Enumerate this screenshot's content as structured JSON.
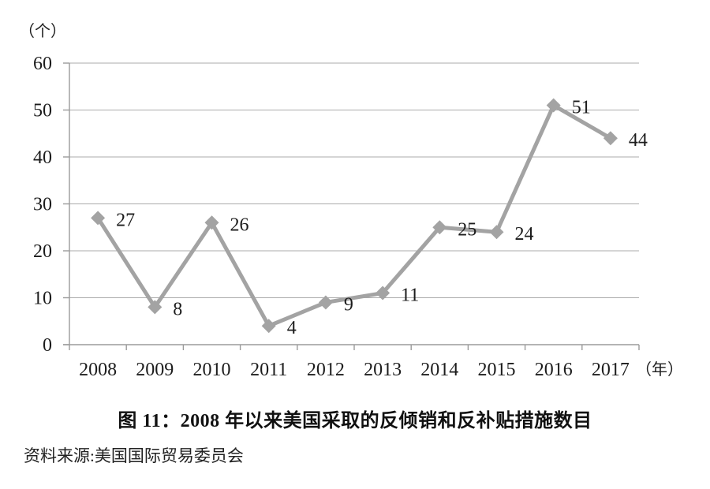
{
  "figure": {
    "title": "图 11：2008 年以来美国采取的反倾销和反补贴措施数目",
    "source": "资料来源:美国国际贸易委员会"
  },
  "chart_data": {
    "type": "line",
    "title": "图 11：2008 年以来美国采取的反倾销和反补贴措施数目",
    "categories": [
      "2008",
      "2009",
      "2010",
      "2011",
      "2012",
      "2013",
      "2014",
      "2015",
      "2016",
      "2017"
    ],
    "values": [
      27,
      8,
      26,
      4,
      9,
      11,
      25,
      24,
      51,
      44
    ],
    "xlabel": "（年）",
    "ylabel": "（个）",
    "ylim": [
      0,
      60
    ],
    "yticks": [
      0,
      10,
      20,
      30,
      40,
      50,
      60
    ],
    "grid": true,
    "legend": false,
    "marker": "diamond",
    "colors": {
      "series": "#a3a3a3",
      "grid": "#ababab",
      "axis": "#9b9b9b",
      "text": "#1c1c1c"
    }
  }
}
